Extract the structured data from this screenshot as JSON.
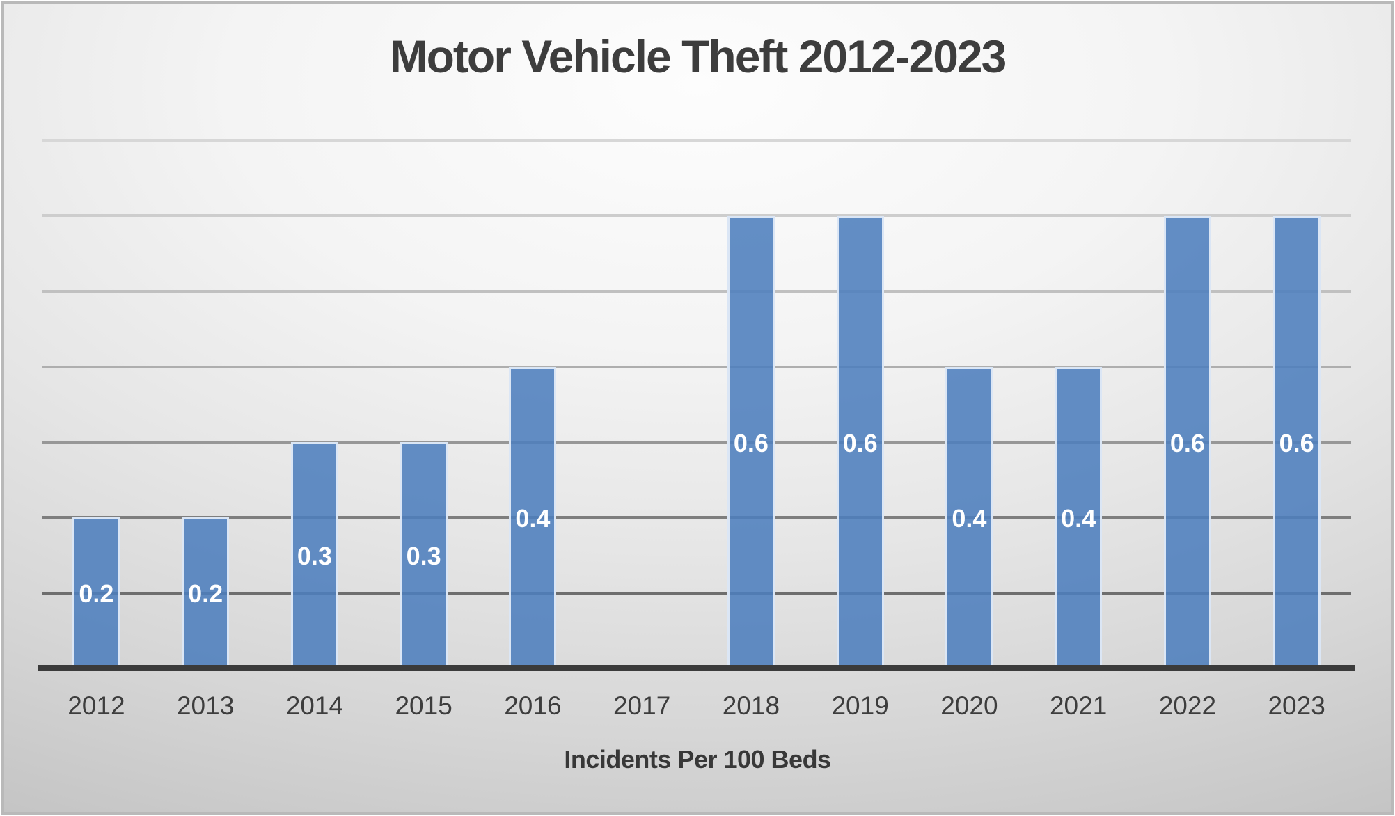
{
  "chart_data": {
    "type": "bar",
    "title": "Motor Vehicle Theft 2012-2023",
    "xlabel": "Incidents Per 100 Beds",
    "ylabel": "",
    "categories": [
      "2012",
      "2013",
      "2014",
      "2015",
      "2016",
      "2017",
      "2018",
      "2019",
      "2020",
      "2021",
      "2022",
      "2023"
    ],
    "values": [
      0.2,
      0.2,
      0.3,
      0.3,
      0.4,
      0,
      0.6,
      0.6,
      0.4,
      0.4,
      0.6,
      0.6
    ],
    "data_labels": [
      "0.2",
      "0.2",
      "0.3",
      "0.3",
      "0.4",
      "",
      "0.6",
      "0.6",
      "0.4",
      "0.4",
      "0.6",
      "0.6"
    ],
    "ylim": [
      0,
      0.7
    ],
    "gridline_step": 0.1,
    "grid": true,
    "legend": false,
    "y_axis_labels_visible": false,
    "gridlines": [
      {
        "value": 0.7,
        "color": "#d7d7d7"
      },
      {
        "value": 0.6,
        "color": "#cdcdcd"
      },
      {
        "value": 0.5,
        "color": "#c0c0c0"
      },
      {
        "value": 0.4,
        "color": "#aeaeae"
      },
      {
        "value": 0.3,
        "color": "#979797"
      },
      {
        "value": 0.2,
        "color": "#7e7e7e"
      },
      {
        "value": 0.1,
        "color": "#6e6e6e"
      }
    ],
    "colors": {
      "bar_fill": "rgba(77,126,189,0.88)",
      "bar_border": "rgba(225,235,248,0.95)",
      "data_label": "#ffffff",
      "axis_line": "#3b3b3b",
      "text": "#3d3d3d",
      "slide_border": "#b9b9b9"
    }
  }
}
